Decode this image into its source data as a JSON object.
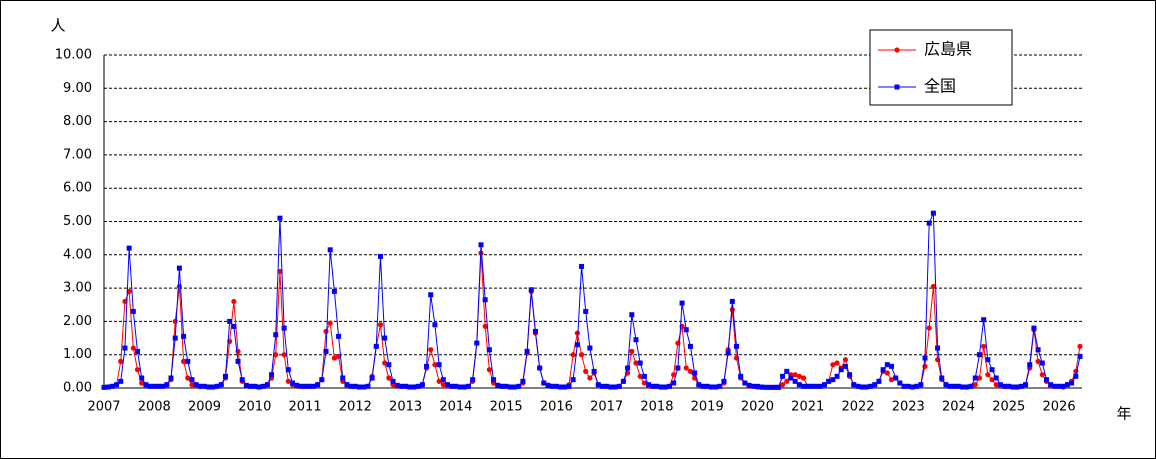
{
  "chart_data": {
    "type": "line",
    "y_label": "人",
    "x_label": "年",
    "categories": [
      "2007",
      null,
      null,
      null,
      null,
      null,
      null,
      null,
      null,
      null,
      null,
      null,
      "2008",
      null,
      null,
      null,
      null,
      null,
      null,
      null,
      null,
      null,
      null,
      null,
      "2009",
      null,
      null,
      null,
      null,
      null,
      null,
      null,
      null,
      null,
      null,
      null,
      "2010",
      null,
      null,
      null,
      null,
      null,
      null,
      null,
      null,
      null,
      null,
      null,
      "2011",
      null,
      null,
      null,
      null,
      null,
      null,
      null,
      null,
      null,
      null,
      null,
      "2012",
      null,
      null,
      null,
      null,
      null,
      null,
      null,
      null,
      null,
      null,
      null,
      "2013",
      null,
      null,
      null,
      null,
      null,
      null,
      null,
      null,
      null,
      null,
      null,
      "2014",
      null,
      null,
      null,
      null,
      null,
      null,
      null,
      null,
      null,
      null,
      null,
      "2015",
      null,
      null,
      null,
      null,
      null,
      null,
      null,
      null,
      null,
      null,
      null,
      "2016",
      null,
      null,
      null,
      null,
      null,
      null,
      null,
      null,
      null,
      null,
      null,
      "2017",
      null,
      null,
      null,
      null,
      null,
      null,
      null,
      null,
      null,
      null,
      null,
      "2018",
      null,
      null,
      null,
      null,
      null,
      null,
      null,
      null,
      null,
      null,
      null,
      "2019",
      null,
      null,
      null,
      null,
      null,
      null,
      null,
      null,
      null,
      null,
      null,
      "2020",
      null,
      null,
      null,
      null,
      null,
      null,
      null,
      null,
      null,
      null,
      null,
      "2021",
      null,
      null,
      null,
      null,
      null,
      null,
      null,
      null,
      null,
      null,
      null,
      "2022",
      null,
      null,
      null,
      null,
      null,
      null,
      null,
      null,
      null,
      null,
      null,
      "2023",
      null,
      null,
      null,
      null,
      null,
      null,
      null,
      null,
      null,
      null,
      null,
      "2024",
      null,
      null,
      null,
      null,
      null,
      null,
      null,
      null,
      null,
      null,
      null,
      "2025",
      null,
      null,
      null,
      null,
      null,
      null,
      null,
      null,
      null,
      null,
      null,
      "2026",
      null,
      null,
      null,
      null,
      null
    ],
    "series": [
      {
        "name": "広島県",
        "color": "#ff0000",
        "marker": "circle",
        "values": [
          0.02,
          0.03,
          0.05,
          0.1,
          0.8,
          2.6,
          2.9,
          1.2,
          0.55,
          0.15,
          0.08,
          0.05,
          0.05,
          0.05,
          0.05,
          0.1,
          0.25,
          2.0,
          3.05,
          0.8,
          0.3,
          0.1,
          0.05,
          0.05,
          0.05,
          0.03,
          0.03,
          0.05,
          0.1,
          0.3,
          1.4,
          2.6,
          1.1,
          0.2,
          0.08,
          0.05,
          0.05,
          0.03,
          0.05,
          0.1,
          0.3,
          1.0,
          3.5,
          1.0,
          0.2,
          0.1,
          0.05,
          0.05,
          0.05,
          0.05,
          0.05,
          0.1,
          0.25,
          1.7,
          1.95,
          0.9,
          0.95,
          0.2,
          0.08,
          0.05,
          0.05,
          0.03,
          0.03,
          0.05,
          0.35,
          1.25,
          1.9,
          0.75,
          0.3,
          0.1,
          0.05,
          0.05,
          0.05,
          0.03,
          0.03,
          0.05,
          0.1,
          0.6,
          1.15,
          0.7,
          0.2,
          0.1,
          0.05,
          0.05,
          0.05,
          0.03,
          0.03,
          0.05,
          0.2,
          1.35,
          4.05,
          1.85,
          0.55,
          0.15,
          0.08,
          0.05,
          0.05,
          0.03,
          0.03,
          0.05,
          0.15,
          1.05,
          2.9,
          1.65,
          0.6,
          0.15,
          0.08,
          0.05,
          0.05,
          0.03,
          0.03,
          0.1,
          1.0,
          1.65,
          1.0,
          0.5,
          0.3,
          0.45,
          0.1,
          0.05,
          0.05,
          0.03,
          0.03,
          0.05,
          0.2,
          0.45,
          1.1,
          0.75,
          0.35,
          0.15,
          0.05,
          0.05,
          0.05,
          0.03,
          0.03,
          0.05,
          0.4,
          1.35,
          1.85,
          0.6,
          0.5,
          0.3,
          0.1,
          0.05,
          0.05,
          0.03,
          0.03,
          0.05,
          0.15,
          1.15,
          2.35,
          0.9,
          0.3,
          0.15,
          0.05,
          0.05,
          0.03,
          0.02,
          0.02,
          0.02,
          0.02,
          0.02,
          0.1,
          0.2,
          0.4,
          0.4,
          0.35,
          0.3,
          0.05,
          0.05,
          0.05,
          0.05,
          0.1,
          0.2,
          0.7,
          0.75,
          0.6,
          0.85,
          0.35,
          0.1,
          0.05,
          0.03,
          0.03,
          0.05,
          0.1,
          0.2,
          0.5,
          0.45,
          0.25,
          0.3,
          0.15,
          0.05,
          0.05,
          0.03,
          0.05,
          0.1,
          0.65,
          1.8,
          3.05,
          0.85,
          0.25,
          0.1,
          0.05,
          0.05,
          0.05,
          0.03,
          0.03,
          0.05,
          0.1,
          0.3,
          1.25,
          0.4,
          0.25,
          0.1,
          0.05,
          0.05,
          0.05,
          0.03,
          0.03,
          0.05,
          0.1,
          0.6,
          1.75,
          0.8,
          0.4,
          0.2,
          0.05,
          0.05,
          0.05,
          0.03,
          0.1,
          0.2,
          0.5,
          1.25
        ]
      },
      {
        "name": "全国",
        "color": "#0000ff",
        "marker": "square",
        "values": [
          0.02,
          0.03,
          0.05,
          0.1,
          0.2,
          1.2,
          4.2,
          2.3,
          1.1,
          0.3,
          0.1,
          0.05,
          0.05,
          0.05,
          0.05,
          0.1,
          0.3,
          1.5,
          3.6,
          1.55,
          0.8,
          0.25,
          0.1,
          0.05,
          0.05,
          0.03,
          0.03,
          0.05,
          0.1,
          0.35,
          2.0,
          1.85,
          0.8,
          0.25,
          0.08,
          0.05,
          0.05,
          0.03,
          0.05,
          0.1,
          0.4,
          1.6,
          5.1,
          1.8,
          0.55,
          0.15,
          0.08,
          0.05,
          0.05,
          0.05,
          0.05,
          0.1,
          0.25,
          1.1,
          4.15,
          2.9,
          1.55,
          0.3,
          0.1,
          0.05,
          0.05,
          0.03,
          0.03,
          0.05,
          0.3,
          1.25,
          3.95,
          1.5,
          0.7,
          0.2,
          0.08,
          0.05,
          0.05,
          0.03,
          0.03,
          0.05,
          0.1,
          0.65,
          2.8,
          1.9,
          0.7,
          0.25,
          0.1,
          0.05,
          0.05,
          0.03,
          0.03,
          0.05,
          0.25,
          1.35,
          4.3,
          2.65,
          1.15,
          0.25,
          0.08,
          0.05,
          0.05,
          0.03,
          0.03,
          0.05,
          0.2,
          1.1,
          2.95,
          1.7,
          0.6,
          0.15,
          0.08,
          0.05,
          0.05,
          0.03,
          0.03,
          0.05,
          0.25,
          1.3,
          3.65,
          2.3,
          1.2,
          0.5,
          0.1,
          0.05,
          0.05,
          0.03,
          0.03,
          0.05,
          0.2,
          0.6,
          2.2,
          1.45,
          0.75,
          0.35,
          0.1,
          0.05,
          0.05,
          0.03,
          0.03,
          0.05,
          0.15,
          0.6,
          2.55,
          1.75,
          1.25,
          0.45,
          0.1,
          0.05,
          0.05,
          0.03,
          0.03,
          0.05,
          0.2,
          1.05,
          2.6,
          1.25,
          0.35,
          0.15,
          0.08,
          0.05,
          0.05,
          0.03,
          0.02,
          0.02,
          0.02,
          0.02,
          0.35,
          0.5,
          0.3,
          0.2,
          0.1,
          0.05,
          0.05,
          0.05,
          0.05,
          0.05,
          0.1,
          0.2,
          0.25,
          0.35,
          0.55,
          0.65,
          0.4,
          0.1,
          0.05,
          0.03,
          0.03,
          0.05,
          0.1,
          0.2,
          0.55,
          0.7,
          0.65,
          0.3,
          0.15,
          0.05,
          0.05,
          0.03,
          0.05,
          0.1,
          0.9,
          4.95,
          5.25,
          1.2,
          0.3,
          0.1,
          0.05,
          0.05,
          0.05,
          0.03,
          0.03,
          0.05,
          0.3,
          1.0,
          2.05,
          0.85,
          0.55,
          0.3,
          0.1,
          0.05,
          0.05,
          0.03,
          0.03,
          0.05,
          0.1,
          0.7,
          1.8,
          1.15,
          0.75,
          0.25,
          0.1,
          0.05,
          0.05,
          0.05,
          0.1,
          0.15,
          0.35,
          0.95
        ]
      }
    ],
    "ylim": [
      0,
      10
    ],
    "yticks": [
      {
        "value": 0,
        "label": "0.00"
      },
      {
        "value": 1,
        "label": "1.00"
      },
      {
        "value": 2,
        "label": "2.00"
      },
      {
        "value": 3,
        "label": "3.00"
      },
      {
        "value": 4,
        "label": "4.00"
      },
      {
        "value": 5,
        "label": "5.00"
      },
      {
        "value": 6,
        "label": "6.00"
      },
      {
        "value": 7,
        "label": "7.00"
      },
      {
        "value": 8,
        "label": "8.00"
      },
      {
        "value": 9,
        "label": "9.00"
      },
      {
        "value": 10,
        "label": "10.00"
      }
    ],
    "grid": true,
    "legend": "top-right"
  }
}
